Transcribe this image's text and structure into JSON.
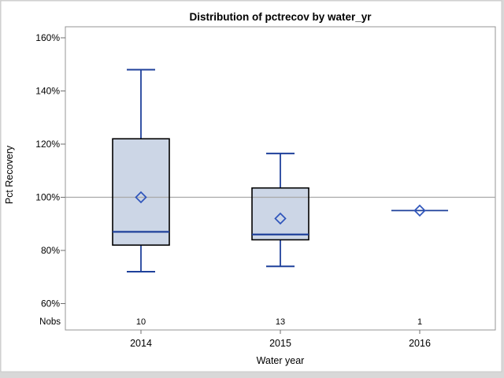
{
  "chart_data": {
    "type": "boxplot",
    "title": "Distribution of pctrecov by water_yr",
    "xlabel": "Water year",
    "ylabel": "Pct Recovery",
    "categories": [
      "2014",
      "2015",
      "2016"
    ],
    "nobs_label": "Nobs",
    "nobs": [
      "10",
      "13",
      "1"
    ],
    "y_axis": {
      "tick_format": "percent",
      "ticks": [
        {
          "value": 160,
          "label": "160%"
        },
        {
          "value": 140,
          "label": "140%"
        },
        {
          "value": 120,
          "label": "120%"
        },
        {
          "value": 100,
          "label": "100%"
        },
        {
          "value": 80,
          "label": "80%"
        },
        {
          "value": 60,
          "label": "60%"
        }
      ],
      "ylim": [
        50,
        164
      ]
    },
    "reference_line": 100,
    "grid": "reference-line-only",
    "legend": "none",
    "series": [
      {
        "category": "2014",
        "n": 10,
        "whisker_low": 72,
        "q1": 82,
        "median": 87,
        "q3": 122,
        "whisker_high": 148,
        "mean": 100
      },
      {
        "category": "2015",
        "n": 13,
        "whisker_low": 74,
        "q1": 84,
        "median": 86,
        "q3": 103.5,
        "whisker_high": 116.5,
        "mean": 92
      },
      {
        "category": "2016",
        "n": 1,
        "whisker_low": 95,
        "q1": 95,
        "median": 95,
        "q3": 95,
        "whisker_high": 95,
        "mean": 95
      }
    ],
    "colors": {
      "box_fill": "#ccd6e6",
      "box_border": "#000000",
      "stat_line": "#1f419b",
      "mean_marker": "#2f55bb",
      "reference_line": "#a8a8a8",
      "axis_frame": "#949494",
      "tick_mark": "#6f6f6f",
      "text": "#000000",
      "plot_background": "#ffffff",
      "figure_border": "#c9c9c9",
      "page_background": "#d8d8d8"
    }
  }
}
